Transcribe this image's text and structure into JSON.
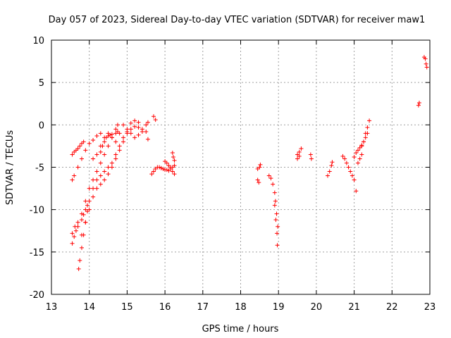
{
  "chart_data": {
    "type": "scatter",
    "title": "Day 057 of 2023, Sidereal Day-to-day VTEC variation (SDTVAR) for receiver maw1",
    "xlabel": "GPS time / hours",
    "ylabel": "SDTVAR / TECUs",
    "xlim": [
      13,
      23
    ],
    "ylim": [
      -20,
      10
    ],
    "xticks": [
      13,
      14,
      15,
      16,
      17,
      18,
      19,
      20,
      21,
      22,
      23
    ],
    "yticks": [
      -20,
      -15,
      -10,
      -5,
      0,
      5,
      10
    ],
    "grid": true,
    "marker": "+",
    "color": "#ff0000",
    "segments": [
      {
        "name": "arc-a",
        "x": [
          13.55,
          13.62,
          13.7,
          13.8,
          13.9,
          14.0,
          14.1,
          14.2,
          14.3,
          14.4,
          14.5,
          14.6,
          14.7,
          14.75
        ],
        "y": [
          -12.8,
          -12.0,
          -11.5,
          -10.5,
          -9.0,
          -7.5,
          -6.5,
          -5.5,
          -4.5,
          -3.5,
          -2.5,
          -1.5,
          -0.5,
          0.0
        ]
      },
      {
        "name": "arc-b",
        "x": [
          13.55,
          13.6,
          13.7,
          13.8,
          13.9,
          14.0,
          14.1,
          14.2,
          14.3
        ],
        "y": [
          -6.5,
          -6.0,
          -5.0,
          -4.0,
          -3.0,
          -2.2,
          -1.8,
          -1.3,
          -1.0
        ]
      },
      {
        "name": "arc-c",
        "x": [
          13.55,
          13.6,
          13.65,
          13.7,
          13.75,
          13.8,
          13.85
        ],
        "y": [
          -3.5,
          -3.2,
          -3.0,
          -2.8,
          -2.5,
          -2.2,
          -2.0
        ]
      },
      {
        "name": "arc-d",
        "x": [
          13.55,
          13.6,
          13.65,
          13.7,
          13.8,
          13.85,
          13.9,
          13.95
        ],
        "y": [
          -14.0,
          -13.2,
          -12.5,
          -12.0,
          -11.2,
          -10.6,
          -10.0,
          -9.5
        ]
      },
      {
        "name": "arc-e",
        "x": [
          13.72,
          13.75,
          13.8,
          13.85,
          13.9,
          13.95,
          14.0,
          14.1,
          14.2,
          14.3,
          14.4,
          14.5,
          14.6,
          14.7,
          14.8,
          14.9,
          15.0,
          15.1,
          15.2,
          15.3
        ],
        "y": [
          -17.0,
          -16.0,
          -14.5,
          -13.0,
          -11.5,
          -10.2,
          -9.0,
          -7.5,
          -6.5,
          -6.0,
          -5.5,
          -5.0,
          -4.5,
          -3.5,
          -2.5,
          -1.5,
          -0.8,
          0.2,
          0.5,
          0.3
        ]
      },
      {
        "name": "arc-f",
        "x": [
          13.8,
          13.9,
          14.0,
          14.1,
          14.2,
          14.3,
          14.4,
          14.5,
          14.6,
          14.7,
          14.8,
          14.9,
          15.0,
          15.1,
          15.2,
          15.3,
          15.4,
          15.5
        ],
        "y": [
          -13.0,
          -11.5,
          -10.0,
          -8.5,
          -7.5,
          -7.0,
          -6.5,
          -5.8,
          -5.0,
          -4.0,
          -3.0,
          -2.0,
          -1.0,
          -0.5,
          -0.2,
          -0.3,
          -0.5,
          -0.8
        ]
      },
      {
        "name": "arc-g",
        "x": [
          14.1,
          14.2,
          14.3,
          14.4,
          14.5,
          14.6,
          14.7,
          14.8,
          14.9,
          15.0,
          15.1,
          15.2,
          15.3,
          15.4,
          15.5,
          15.55
        ],
        "y": [
          -4.0,
          -3.5,
          -2.5,
          -1.5,
          -1.0,
          -1.5,
          -2.0,
          -1.0,
          0.0,
          -0.5,
          -1.0,
          -1.5,
          -1.2,
          -0.8,
          0.0,
          0.3
        ]
      },
      {
        "name": "arc-h",
        "x": [
          14.3,
          14.35,
          14.4,
          14.45,
          14.5,
          14.55,
          14.6,
          14.7,
          14.75
        ],
        "y": [
          -3.2,
          -2.5,
          -2.0,
          -1.5,
          -1.3,
          -1.2,
          -1.1,
          -1.0,
          -0.8
        ]
      },
      {
        "name": "arc-i",
        "x": [
          15.7,
          15.75
        ],
        "y": [
          1.0,
          0.6
        ]
      },
      {
        "name": "arc-j",
        "x": [
          15.65,
          15.7,
          15.75,
          15.8,
          15.85,
          15.9,
          15.95,
          16.0,
          16.05,
          16.1,
          16.15,
          16.2,
          16.25
        ],
        "y": [
          -5.8,
          -5.5,
          -5.2,
          -5.0,
          -5.0,
          -5.1,
          -5.2,
          -5.3,
          -5.3,
          -5.4,
          -5.2,
          -5.0,
          -4.8
        ]
      },
      {
        "name": "arc-k",
        "x": [
          16.0,
          16.05,
          16.1,
          16.15,
          16.2,
          16.25
        ],
        "y": [
          -4.3,
          -4.5,
          -4.8,
          -5.0,
          -5.5,
          -5.8
        ]
      },
      {
        "name": "arc-l",
        "x": [
          16.2,
          16.22,
          16.25
        ],
        "y": [
          -3.3,
          -3.8,
          -4.2
        ]
      },
      {
        "name": "arc-m",
        "x": [
          15.55
        ],
        "y": [
          -1.7
        ]
      },
      {
        "name": "arc-n",
        "x": [
          18.45,
          18.5,
          18.52
        ],
        "y": [
          -5.2,
          -5.0,
          -4.7
        ]
      },
      {
        "name": "arc-o",
        "x": [
          18.45,
          18.48
        ],
        "y": [
          -6.5,
          -6.8
        ]
      },
      {
        "name": "arc-p",
        "x": [
          18.75,
          18.8,
          18.85,
          18.9,
          18.92,
          18.95,
          18.98
        ],
        "y": [
          -6.0,
          -6.3,
          -7.0,
          -8.0,
          -9.0,
          -10.5,
          -12.0
        ]
      },
      {
        "name": "arc-q",
        "x": [
          18.9,
          18.93,
          18.96
        ],
        "y": [
          -9.5,
          -11.2,
          -12.8
        ]
      },
      {
        "name": "arc-r",
        "x": [
          18.97
        ],
        "y": [
          -14.2
        ]
      },
      {
        "name": "arc-s",
        "x": [
          19.5,
          19.55,
          19.6
        ],
        "y": [
          -3.5,
          -3.2,
          -2.8
        ]
      },
      {
        "name": "arc-t",
        "x": [
          19.5,
          19.55
        ],
        "y": [
          -4.0,
          -3.7
        ]
      },
      {
        "name": "arc-u",
        "x": [
          19.85,
          19.87
        ],
        "y": [
          -3.5,
          -4.0
        ]
      },
      {
        "name": "arc-v",
        "x": [
          20.3,
          20.35,
          20.4,
          20.42
        ],
        "y": [
          -6.0,
          -5.5,
          -4.8,
          -4.4
        ]
      },
      {
        "name": "arc-w",
        "x": [
          20.7,
          20.75,
          20.8,
          20.85,
          20.9,
          20.95,
          21.0,
          21.05
        ],
        "y": [
          -3.7,
          -4.0,
          -4.5,
          -5.0,
          -5.5,
          -6.0,
          -6.5,
          -7.8
        ]
      },
      {
        "name": "arc-x",
        "x": [
          21.0,
          21.05,
          21.1,
          21.15,
          21.2,
          21.25,
          21.3,
          21.35
        ],
        "y": [
          -3.8,
          -3.3,
          -3.0,
          -2.7,
          -2.4,
          -2.0,
          -1.5,
          -1.0
        ]
      },
      {
        "name": "arc-y",
        "x": [
          21.2,
          21.25,
          21.3,
          21.35,
          21.4
        ],
        "y": [
          -2.5,
          -2.0,
          -1.0,
          -0.3,
          0.5
        ]
      },
      {
        "name": "arc-z",
        "x": [
          21.1,
          21.15,
          21.2
        ],
        "y": [
          -4.5,
          -4.0,
          -3.5
        ]
      },
      {
        "name": "arc-late-1",
        "x": [
          22.7,
          22.72
        ],
        "y": [
          2.3,
          2.6
        ]
      },
      {
        "name": "arc-late-2",
        "x": [
          22.85,
          22.88,
          22.9,
          22.92
        ],
        "y": [
          8.0,
          7.8,
          7.2,
          6.8
        ]
      }
    ]
  }
}
